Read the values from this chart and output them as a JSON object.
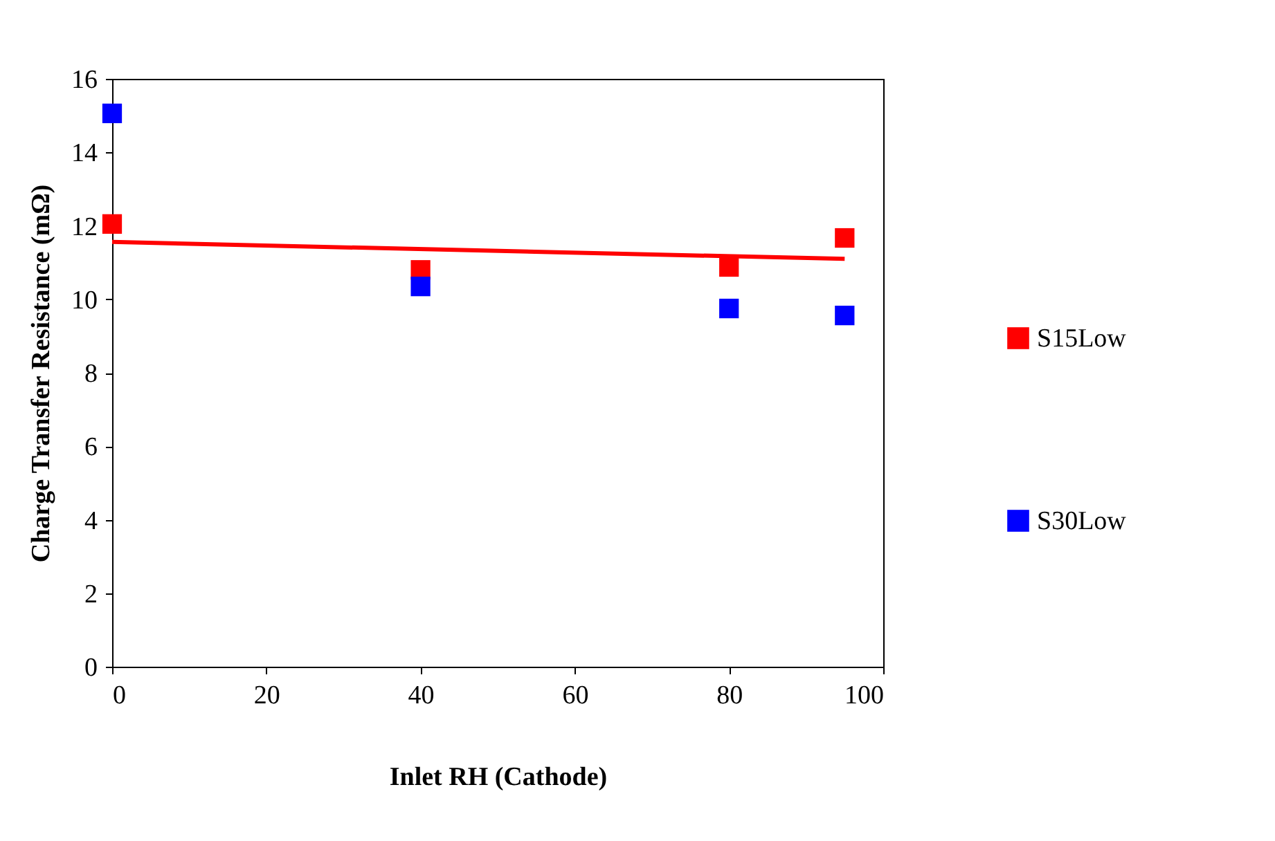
{
  "chart_data": {
    "type": "scatter",
    "xlabel": "Inlet RH (Cathode)",
    "ylabel": "Charge Transfer Resistance (mΩ)",
    "x": [
      0,
      40,
      80,
      95
    ],
    "series": [
      {
        "name": "S15Low",
        "color": "#ff0000",
        "values": [
          12.05,
          10.8,
          10.88,
          11.67
        ]
      },
      {
        "name": "S30Low",
        "color": "#0000ff",
        "values": [
          15.06,
          10.35,
          9.75,
          9.56
        ]
      },
      {
        "type": "line",
        "color": "#ff0000",
        "marker": "none",
        "x": [
          0,
          95
        ],
        "values": [
          11.56,
          11.1
        ]
      }
    ],
    "xlim": [
      0,
      100
    ],
    "xticks": [
      0,
      20,
      40,
      60,
      80,
      100
    ],
    "ylim": [
      0,
      16
    ],
    "yticks": [
      0,
      2,
      4,
      6,
      8,
      10,
      12,
      14,
      16
    ],
    "marker": "square",
    "legend": "right",
    "grid": false
  }
}
